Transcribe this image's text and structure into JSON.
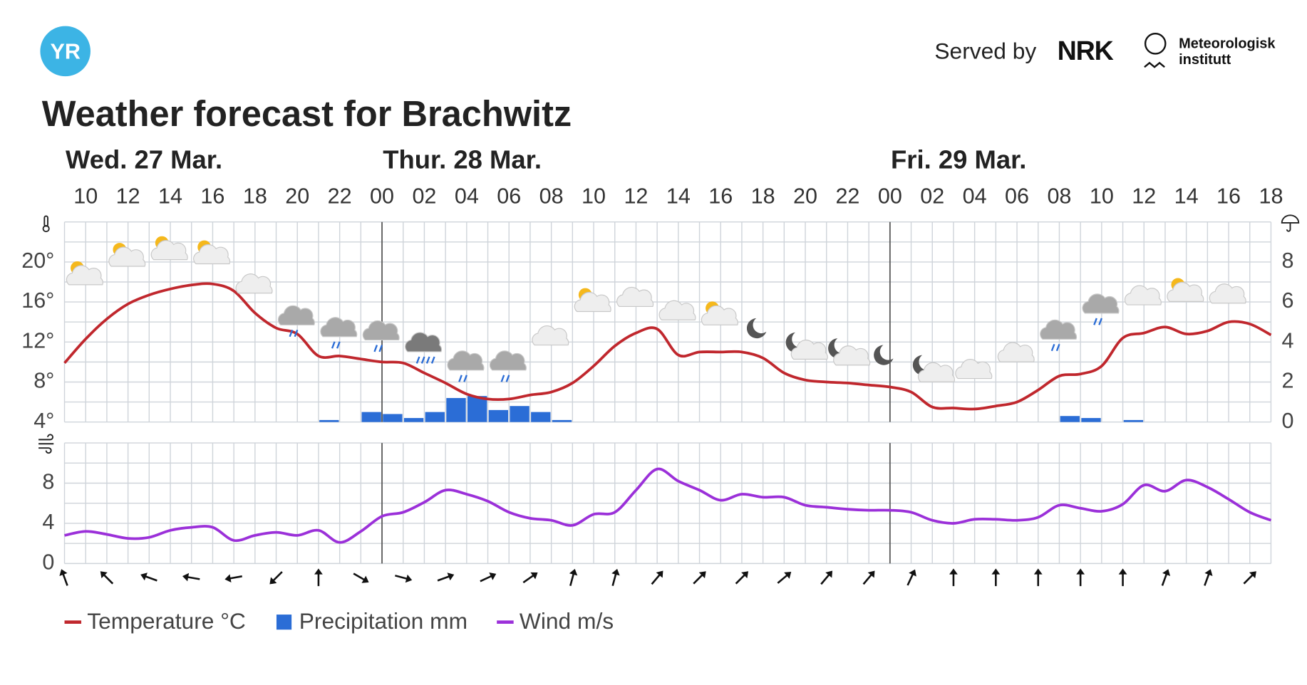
{
  "header": {
    "logo": "YR",
    "served_by": "Served by",
    "nrk": "NRK",
    "met": [
      "Meteorologisk",
      "institutt"
    ]
  },
  "title": "Weather forecast for Brachwitz",
  "days": [
    "Wed. 27 Mar.",
    "Thur. 28 Mar.",
    "Fri. 29 Mar."
  ],
  "chart_data": [
    {
      "type": "line",
      "categories": [
        null,
        "10",
        null,
        "12",
        null,
        "14",
        null,
        "16",
        null,
        "18",
        null,
        "20",
        null,
        "22",
        null,
        "00",
        null,
        "02",
        null,
        "04",
        null,
        "06",
        null,
        "08",
        null,
        "10",
        null,
        "12",
        null,
        "14",
        null,
        "16",
        null,
        "18",
        null,
        "20",
        null,
        "22",
        null,
        "00",
        null,
        "02",
        null,
        "04",
        null,
        "06",
        null,
        "08",
        null,
        "10",
        null,
        "12",
        null,
        "14",
        null,
        "16",
        null,
        "18"
      ],
      "series": [
        {
          "name": "Temperature °C",
          "color": "#c0272d",
          "values": [
            9.9,
            12.3,
            14.3,
            15.8,
            16.7,
            17.3,
            17.7,
            17.8,
            17.1,
            14.9,
            13.4,
            12.8,
            10.6,
            10.6,
            10.3,
            10.0,
            9.9,
            8.9,
            7.9,
            6.8,
            6.3,
            6.3,
            6.7,
            7.0,
            7.9,
            9.6,
            11.6,
            12.9,
            13.3,
            10.7,
            11.0,
            11.0,
            11.0,
            10.4,
            8.9,
            8.2,
            8.0,
            7.9,
            7.7,
            7.5,
            7.0,
            5.5,
            5.4,
            5.3,
            5.6,
            6.0,
            7.2,
            8.6,
            8.8,
            9.6,
            12.4,
            12.9,
            13.5,
            12.8,
            13.1,
            14.0,
            13.8,
            12.7
          ]
        },
        {
          "name": "Precipitation mm",
          "type": "bar",
          "axis": "y2",
          "color": "#2b6dd6",
          "values": [
            0,
            0,
            0,
            0,
            0,
            0,
            0,
            0,
            0,
            0,
            0,
            0,
            0.1,
            0,
            0.5,
            0.4,
            0.2,
            0.5,
            1.2,
            1.3,
            0.6,
            0.8,
            0.5,
            0.1,
            0,
            0,
            0,
            0,
            0,
            0,
            0,
            0,
            0,
            0,
            0,
            0,
            0,
            0,
            0,
            0,
            0,
            0,
            0,
            0,
            0,
            0,
            0,
            0.3,
            0.2,
            0,
            0.1,
            0,
            0,
            0,
            0,
            0,
            0,
            0
          ]
        }
      ],
      "ylim": [
        4,
        24
      ],
      "yticks": [
        {
          "value": 4,
          "label": "4°"
        },
        {
          "value": 8,
          "label": "8°"
        },
        {
          "value": 12,
          "label": "12°"
        },
        {
          "value": 16,
          "label": "16°"
        },
        {
          "value": 20,
          "label": "20°"
        }
      ],
      "y2lim": [
        0,
        10
      ],
      "y2ticks": [
        0,
        2,
        4,
        6,
        8
      ],
      "grid": true
    },
    {
      "type": "line",
      "series": [
        {
          "name": "Wind m/s",
          "color": "#9b30d9",
          "values": [
            2.8,
            3.2,
            2.9,
            2.5,
            2.6,
            3.3,
            3.6,
            3.6,
            2.3,
            2.8,
            3.1,
            2.8,
            3.3,
            2.1,
            3.2,
            4.7,
            5.1,
            6.1,
            7.3,
            6.9,
            6.2,
            5.1,
            4.5,
            4.3,
            3.8,
            4.9,
            5.1,
            7.3,
            9.4,
            8.2,
            7.3,
            6.3,
            6.9,
            6.6,
            6.6,
            5.8,
            5.6,
            5.4,
            5.3,
            5.3,
            5.1,
            4.3,
            4.0,
            4.4,
            4.4,
            4.3,
            4.6,
            5.8,
            5.5,
            5.2,
            5.9,
            7.8,
            7.2,
            8.3,
            7.6,
            6.4,
            5.1,
            4.3
          ]
        }
      ],
      "directions": [
        -20,
        -45,
        -70,
        -80,
        -100,
        -135,
        0,
        120,
        105,
        70,
        65,
        55,
        15,
        15,
        40,
        45,
        45,
        50,
        40,
        40,
        25,
        0,
        0,
        0,
        0,
        0,
        20,
        20,
        45
      ],
      "ylim": [
        0,
        12
      ],
      "yticks": [
        0,
        4,
        8
      ],
      "grid": true
    }
  ]
}
